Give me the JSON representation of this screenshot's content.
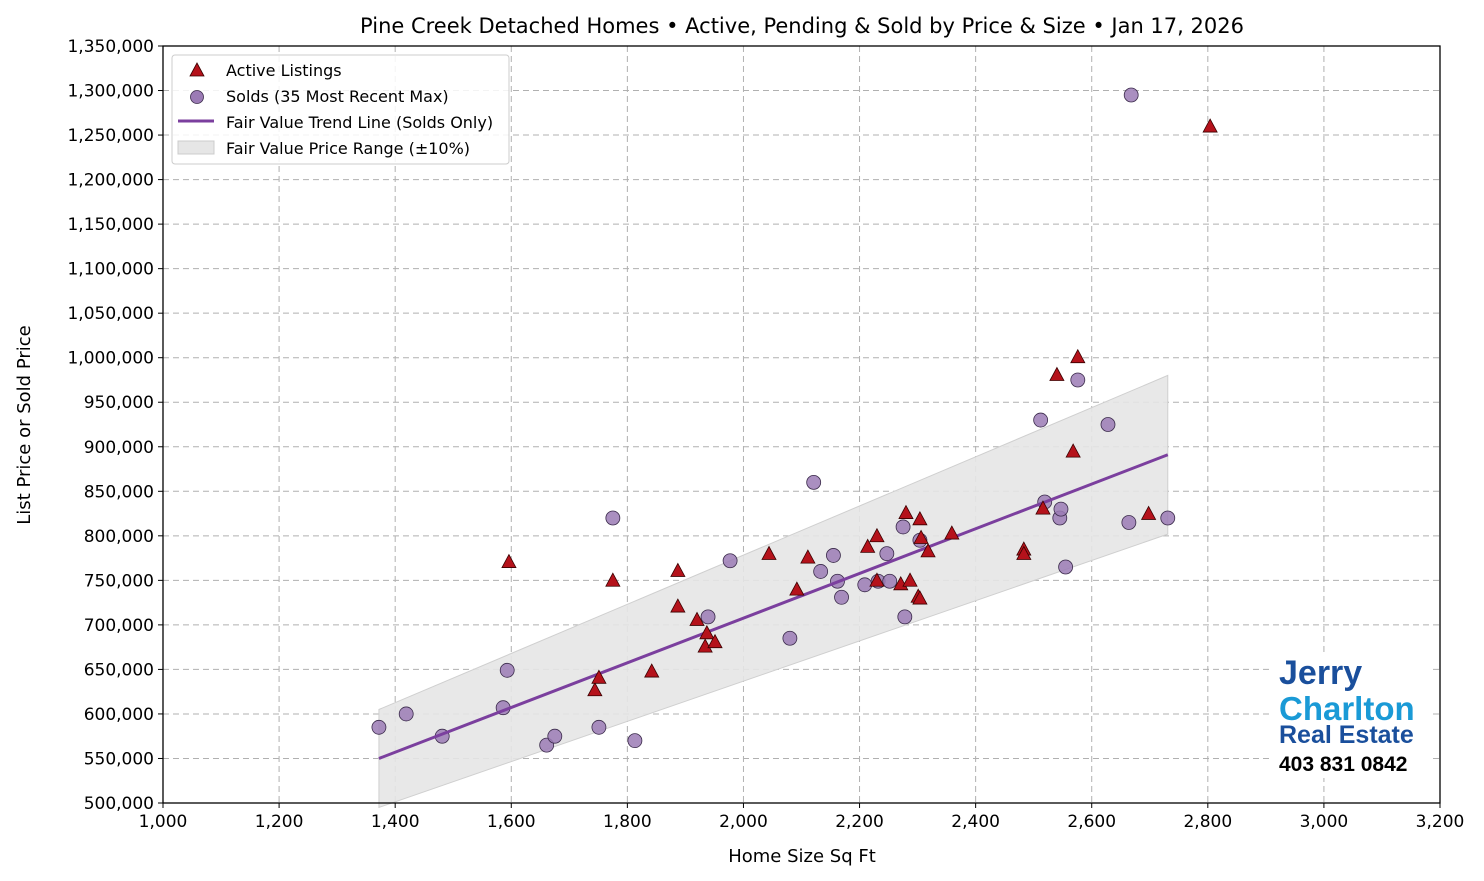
{
  "chart_data": {
    "type": "scatter",
    "title": "Pine Creek Detached Homes • Active, Pending & Sold by Price & Size • Jan 17, 2026",
    "xlabel": "Home Size Sq Ft",
    "ylabel": "List Price or Sold Price",
    "xlim": [
      1000,
      3200
    ],
    "ylim": [
      500000,
      1350000
    ],
    "xticks": [
      "1,000",
      "1,200",
      "1,400",
      "1,600",
      "1,800",
      "2,000",
      "2,200",
      "2,400",
      "2,600",
      "2,800",
      "3,000",
      "3,200"
    ],
    "yticks": [
      "500,000",
      "550,000",
      "600,000",
      "650,000",
      "700,000",
      "750,000",
      "800,000",
      "850,000",
      "900,000",
      "950,000",
      "1,000,000",
      "1,050,000",
      "1,100,000",
      "1,150,000",
      "1,200,000",
      "1,250,000",
      "1,300,000",
      "1,350,000"
    ],
    "grid": true,
    "legend_position": "top-left",
    "colors": {
      "active": "#b5121b",
      "sold": "#9b7bb5",
      "trend": "#7b3f9e",
      "band": "#e6e6e6"
    },
    "series": [
      {
        "name": "Active Listings",
        "marker": "triangle",
        "points": [
          [
            1596,
            770000
          ],
          [
            1744,
            626000
          ],
          [
            1751,
            640000
          ],
          [
            1775,
            749000
          ],
          [
            1842,
            647000
          ],
          [
            1887,
            720000
          ],
          [
            1887,
            760000
          ],
          [
            1920,
            705000
          ],
          [
            1934,
            675000
          ],
          [
            1937,
            690000
          ],
          [
            1951,
            680000
          ],
          [
            2044,
            779000
          ],
          [
            2092,
            739000
          ],
          [
            2111,
            775000
          ],
          [
            2214,
            787000
          ],
          [
            2230,
            799000
          ],
          [
            2230,
            749000
          ],
          [
            2271,
            745000
          ],
          [
            2280,
            825000
          ],
          [
            2287,
            749000
          ],
          [
            2301,
            731000
          ],
          [
            2304,
            729000
          ],
          [
            2304,
            818000
          ],
          [
            2306,
            797000
          ],
          [
            2318,
            782000
          ],
          [
            2359,
            802000
          ],
          [
            2483,
            784000
          ],
          [
            2483,
            779000
          ],
          [
            2516,
            830000
          ],
          [
            2540,
            980000
          ],
          [
            2568,
            894000
          ],
          [
            2576,
            1000000
          ],
          [
            2698,
            824000
          ],
          [
            2804,
            1259000
          ]
        ]
      },
      {
        "name": "Solds (35 Most Recent Max)",
        "marker": "circle",
        "points": [
          [
            1372,
            585000
          ],
          [
            1419,
            600000
          ],
          [
            1481,
            575000
          ],
          [
            1586,
            607000
          ],
          [
            1593,
            649000
          ],
          [
            1661,
            565000
          ],
          [
            1675,
            575000
          ],
          [
            1751,
            585000
          ],
          [
            1775,
            820000
          ],
          [
            1813,
            570000
          ],
          [
            1939,
            709000
          ],
          [
            1977,
            772000
          ],
          [
            2080,
            685000
          ],
          [
            2121,
            860000
          ],
          [
            2133,
            760000
          ],
          [
            2155,
            778000
          ],
          [
            2162,
            749000
          ],
          [
            2169,
            731000
          ],
          [
            2209,
            745000
          ],
          [
            2232,
            749000
          ],
          [
            2247,
            780000
          ],
          [
            2252,
            749000
          ],
          [
            2275,
            810000
          ],
          [
            2278,
            709000
          ],
          [
            2304,
            795000
          ],
          [
            2512,
            930000
          ],
          [
            2519,
            838000
          ],
          [
            2545,
            820000
          ],
          [
            2547,
            830000
          ],
          [
            2555,
            765000
          ],
          [
            2576,
            975000
          ],
          [
            2628,
            925000
          ],
          [
            2664,
            815000
          ],
          [
            2668,
            1295000
          ],
          [
            2731,
            820000
          ]
        ]
      },
      {
        "name": "Fair Value Trend Line (Solds Only)",
        "type": "line",
        "points": [
          [
            1372,
            550000
          ],
          [
            2731,
            891000
          ]
        ]
      },
      {
        "name": "Fair Value Price Range (±10%)",
        "type": "band",
        "range_pct": 10
      }
    ]
  },
  "logo": {
    "line1": "Jerry",
    "line2": "Charlton",
    "line3": "Real Estate",
    "phone": "403 831 0842"
  }
}
